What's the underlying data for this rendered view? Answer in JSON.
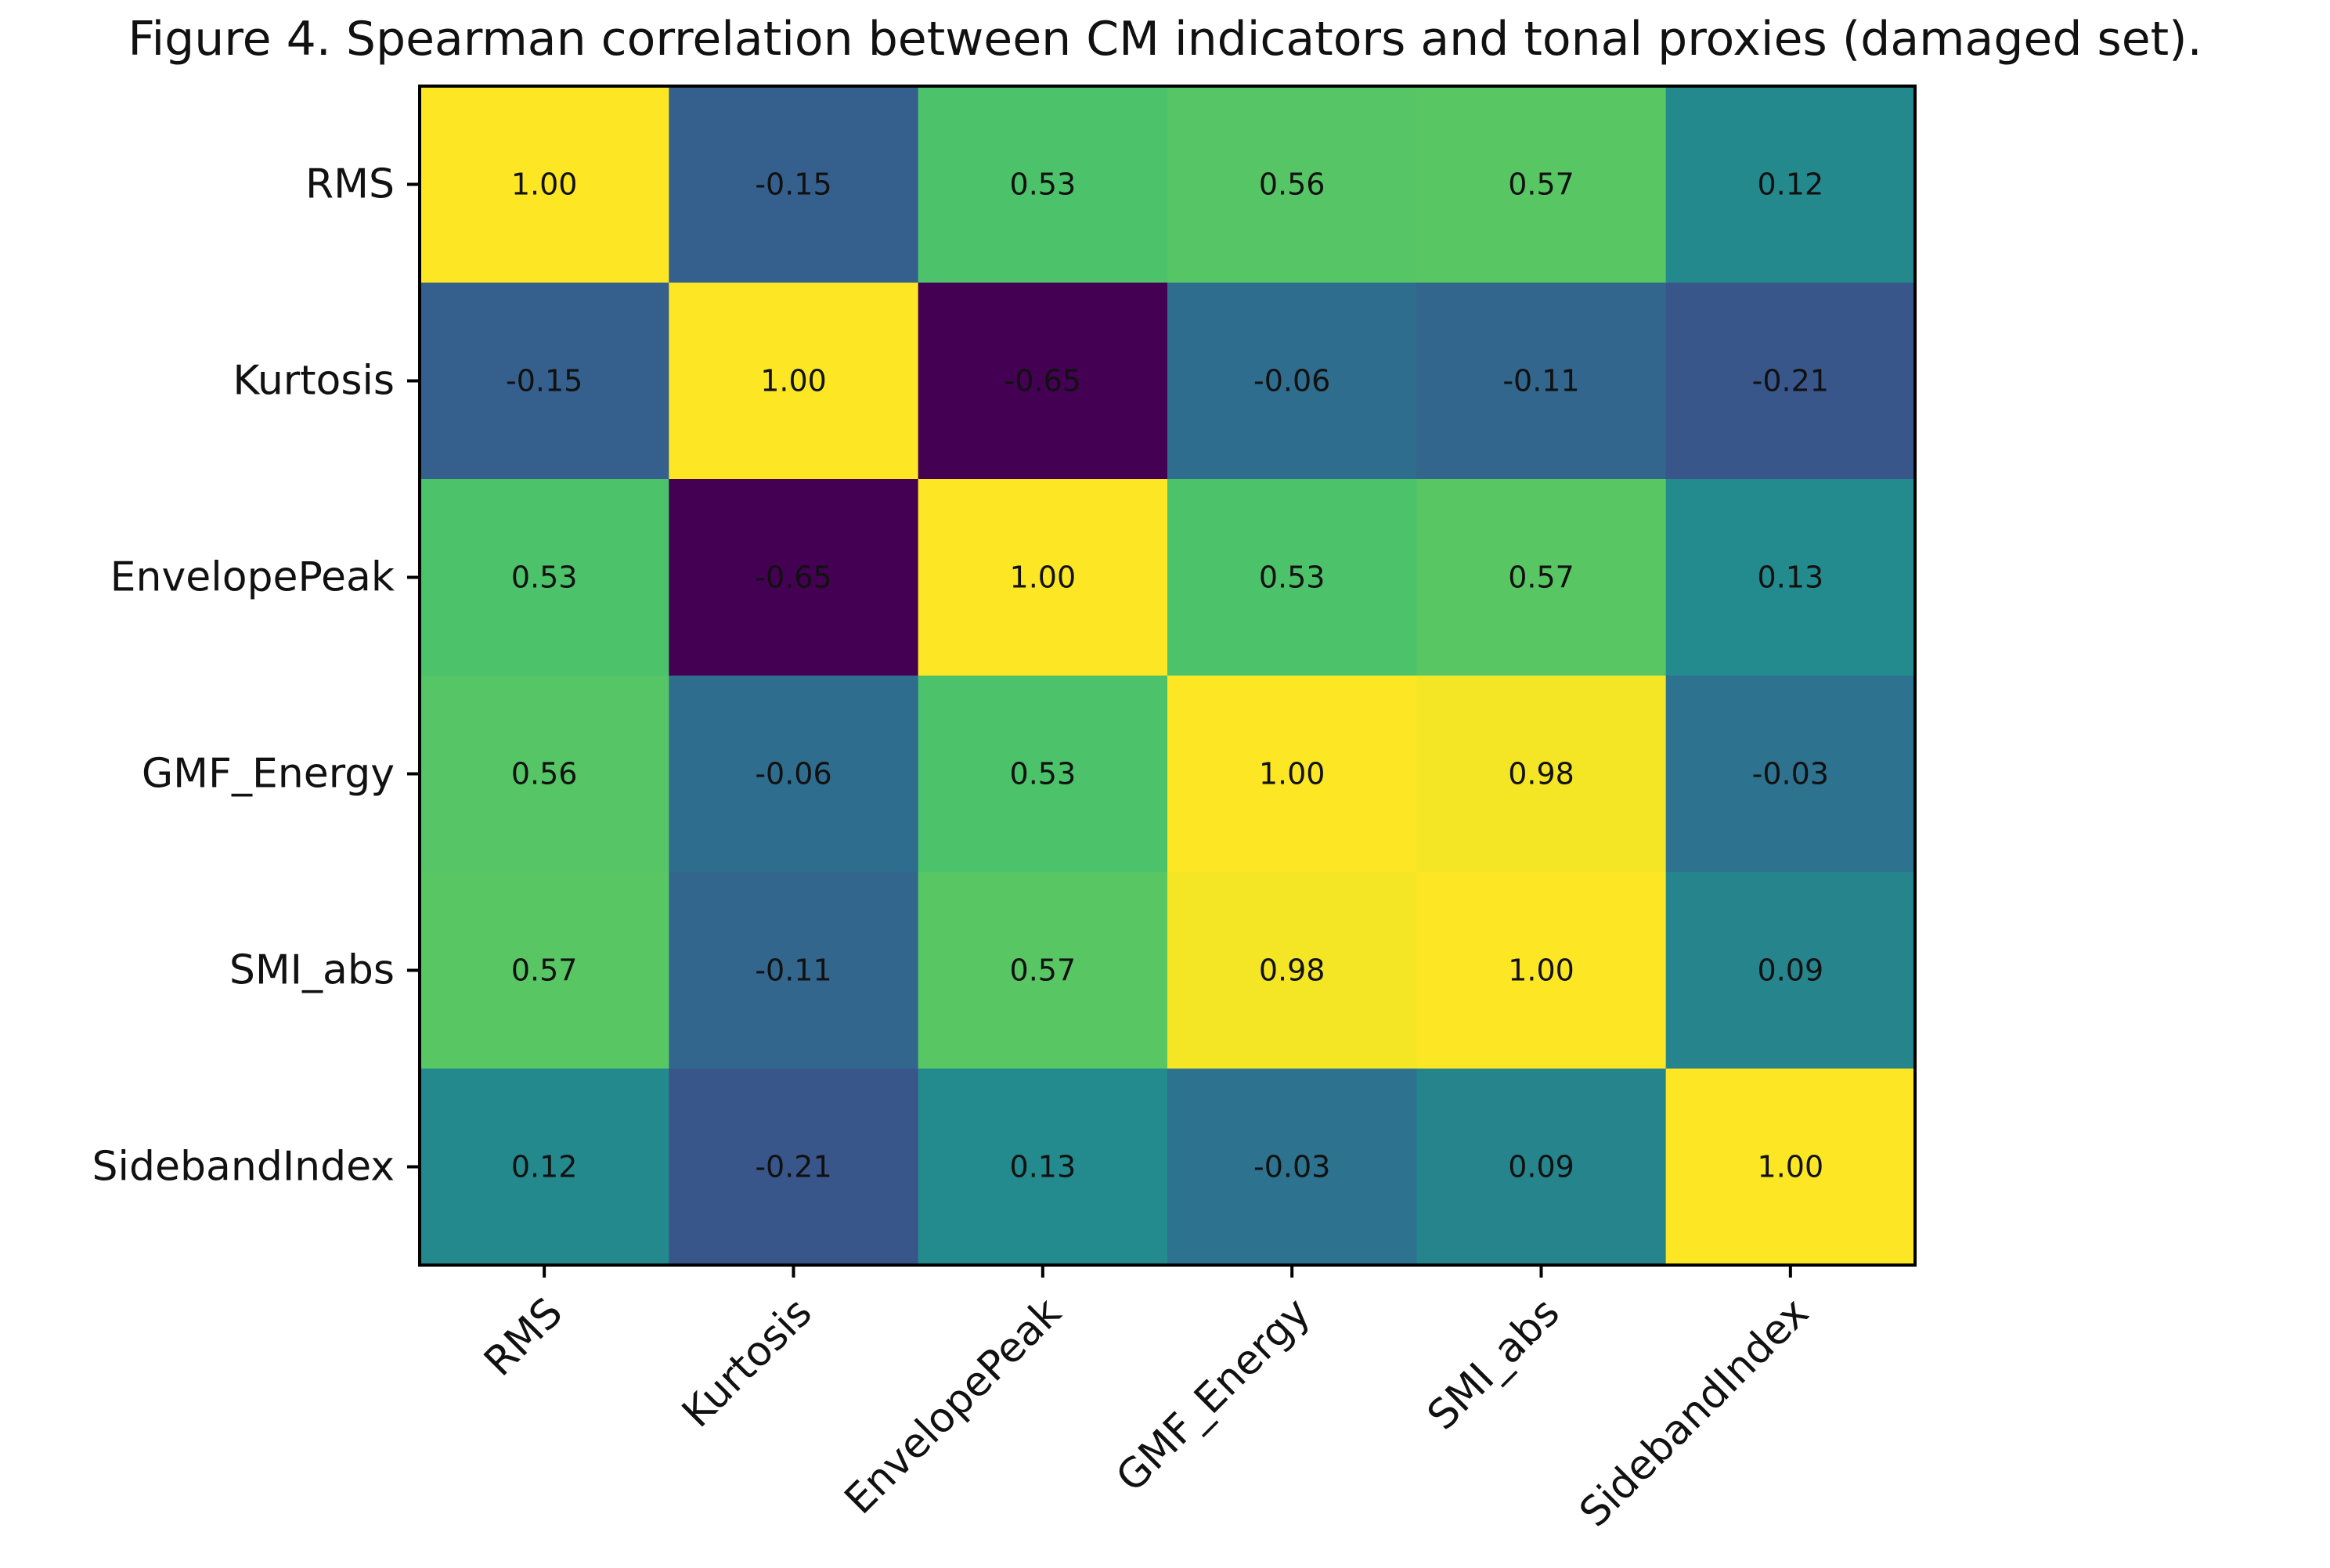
{
  "chart_data": {
    "type": "heatmap",
    "title": "Figure 4. Spearman correlation between CM indicators and tonal proxies (damaged set).",
    "xlabel": "",
    "ylabel": "",
    "rows": [
      "RMS",
      "Kurtosis",
      "EnvelopePeak",
      "GMF_Energy",
      "SMI_abs",
      "SidebandIndex"
    ],
    "columns": [
      "RMS",
      "Kurtosis",
      "EnvelopePeak",
      "GMF_Energy",
      "SMI_abs",
      "SidebandIndex"
    ],
    "values": [
      [
        1.0,
        -0.15,
        0.53,
        0.56,
        0.57,
        0.12
      ],
      [
        -0.15,
        1.0,
        -0.65,
        -0.06,
        -0.11,
        -0.21
      ],
      [
        0.53,
        -0.65,
        1.0,
        0.53,
        0.57,
        0.13
      ],
      [
        0.56,
        -0.06,
        0.53,
        1.0,
        0.98,
        -0.03
      ],
      [
        0.57,
        -0.11,
        0.57,
        0.98,
        1.0,
        0.09
      ],
      [
        0.12,
        -0.21,
        0.13,
        -0.03,
        0.09,
        1.0
      ]
    ],
    "value_labels": [
      [
        "1.00",
        "-0.15",
        "0.53",
        "0.56",
        "0.57",
        "0.12"
      ],
      [
        "-0.15",
        "1.00",
        "-0.65",
        "-0.06",
        "-0.11",
        "-0.21"
      ],
      [
        "0.53",
        "-0.65",
        "1.00",
        "0.53",
        "0.57",
        "0.13"
      ],
      [
        "0.56",
        "-0.06",
        "0.53",
        "1.00",
        "0.98",
        "-0.03"
      ],
      [
        "0.57",
        "-0.11",
        "0.57",
        "0.98",
        "1.00",
        "0.09"
      ],
      [
        "0.12",
        "-0.21",
        "0.13",
        "-0.03",
        "0.09",
        "1.00"
      ]
    ],
    "colormap": "viridis",
    "color_range": [
      -0.65,
      1.0
    ],
    "grid": false,
    "legend": "none"
  }
}
